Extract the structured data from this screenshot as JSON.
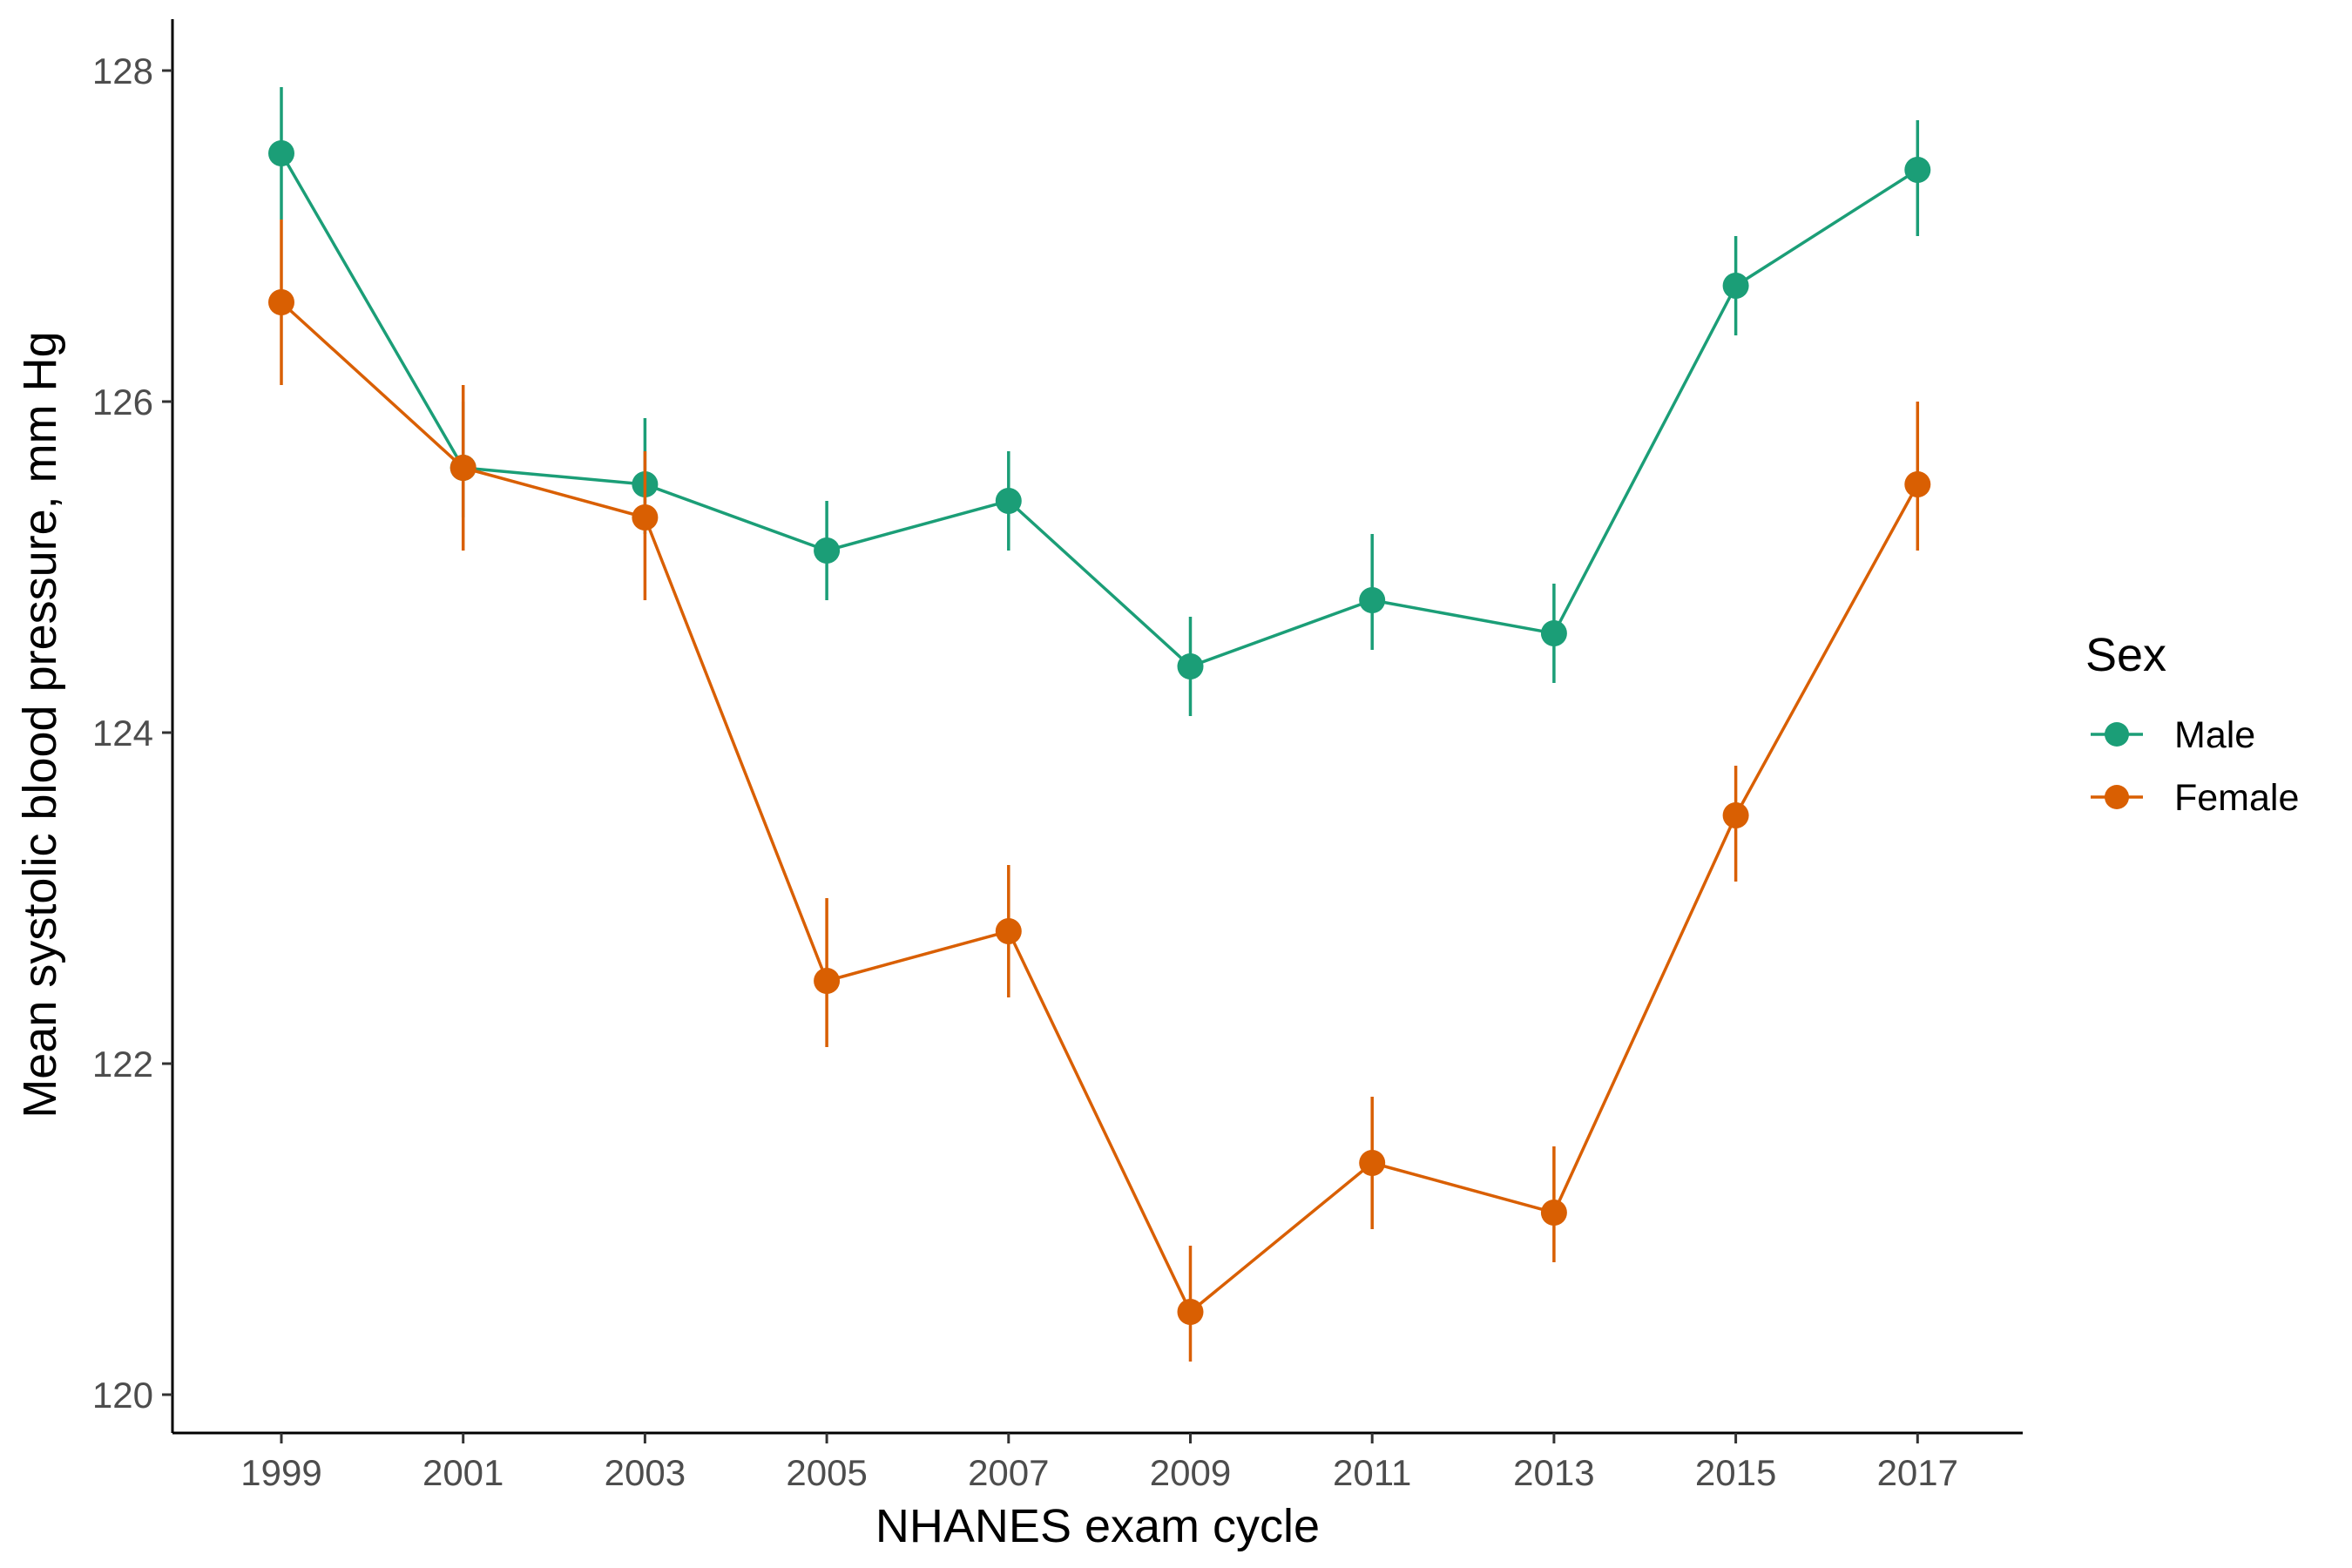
{
  "chart_data": {
    "type": "line",
    "xlabel": "NHANES exam cycle",
    "ylabel": "Mean systolic blood pressure, mm Hg",
    "categories": [
      "1999",
      "2001",
      "2003",
      "2005",
      "2007",
      "2009",
      "2011",
      "2013",
      "2015",
      "2017"
    ],
    "ylim": [
      119.8,
      128.3
    ],
    "yticks": [
      120,
      122,
      124,
      126,
      128
    ],
    "grid": false,
    "legend": {
      "title": "Sex",
      "placement": "right"
    },
    "series": [
      {
        "name": "Male",
        "color": "#1b9e77",
        "values": [
          127.5,
          125.6,
          125.5,
          125.1,
          125.4,
          124.4,
          124.8,
          124.6,
          126.7,
          127.4
        ],
        "lower": [
          127.1,
          125.3,
          125.2,
          124.8,
          125.1,
          124.1,
          124.5,
          124.3,
          126.4,
          127.0
        ],
        "upper": [
          127.9,
          126.0,
          125.9,
          125.4,
          125.7,
          124.7,
          125.2,
          124.9,
          127.0,
          127.7
        ]
      },
      {
        "name": "Female",
        "color": "#d95f02",
        "values": [
          126.6,
          125.6,
          125.3,
          122.5,
          122.8,
          120.5,
          121.4,
          121.1,
          123.5,
          125.5
        ],
        "lower": [
          126.1,
          125.1,
          124.8,
          122.1,
          122.4,
          120.2,
          121.0,
          120.8,
          123.1,
          125.1
        ],
        "upper": [
          127.1,
          126.1,
          125.7,
          123.0,
          123.2,
          120.9,
          121.8,
          121.5,
          123.8,
          126.0
        ]
      }
    ]
  }
}
